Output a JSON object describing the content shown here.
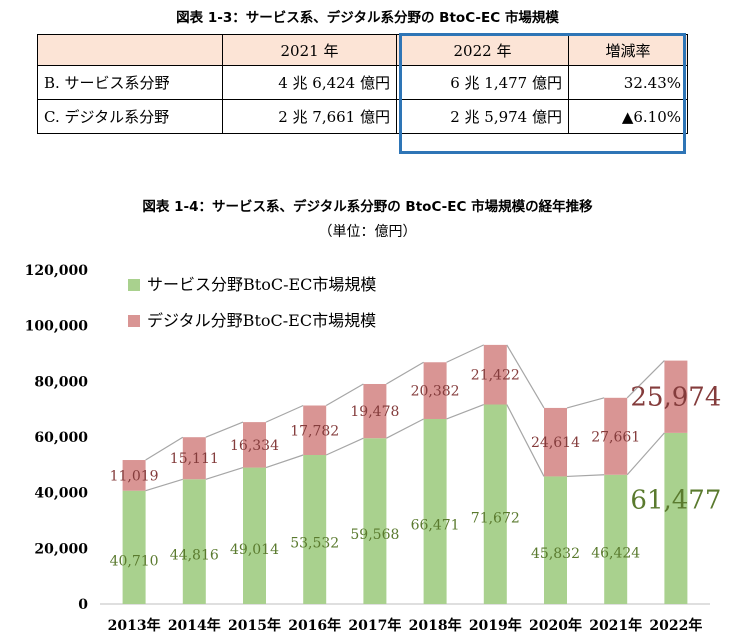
{
  "table": {
    "title": "図表 1-3：サービス系、デジタル系分野の BtoC-EC 市場規模",
    "headers": [
      "",
      "2021 年",
      "2022 年",
      "増減率"
    ],
    "rows": [
      [
        "B. サービス系分野",
        "4 兆 6,424 億円",
        "6 兆 1,477 億円",
        "32.43%"
      ],
      [
        "C. デジタル系分野",
        "2 兆 7,661 億円",
        "2 兆 5,974 億円",
        "▲6.10%"
      ]
    ]
  },
  "chart_title": "図表 1-4：サービス系、デジタル系分野の BtoC-EC 市場規模の経年推移",
  "chart_unit": "（単位：億円）",
  "chart_data": {
    "type": "bar",
    "stacked": true,
    "categories": [
      "2013年",
      "2014年",
      "2015年",
      "2016年",
      "2017年",
      "2018年",
      "2019年",
      "2020年",
      "2021年",
      "2022年"
    ],
    "series": [
      {
        "name": "サービス分野BtoC-EC市場規模",
        "color": "#a9d18e",
        "label_color": "#5a7a2e",
        "values": [
          40710,
          44816,
          49014,
          53532,
          59568,
          66471,
          71672,
          45832,
          46424,
          61477
        ],
        "labels": [
          "40,710",
          "44,816",
          "49,014",
          "53,532",
          "59,568",
          "66,471",
          "71,672",
          "45,832",
          "46,424",
          "61,477"
        ]
      },
      {
        "name": "デジタル分野BtoC-EC市場規模",
        "color": "#d99594",
        "label_color": "#843c3c",
        "values": [
          11019,
          15111,
          16334,
          17782,
          19478,
          20382,
          21422,
          24614,
          27661,
          25974
        ],
        "labels": [
          "11,019",
          "15,111",
          "16,334",
          "17,782",
          "19,478",
          "20,382",
          "21,422",
          "24,614",
          "27,661",
          "25,974"
        ]
      }
    ],
    "yticks": [
      "0",
      "20,000",
      "40,000",
      "60,000",
      "80,000",
      "100,000",
      "120,000"
    ],
    "ylim": [
      0,
      120000
    ],
    "ystep": 20000,
    "legend_position": "top-left",
    "connector_lines": true
  }
}
